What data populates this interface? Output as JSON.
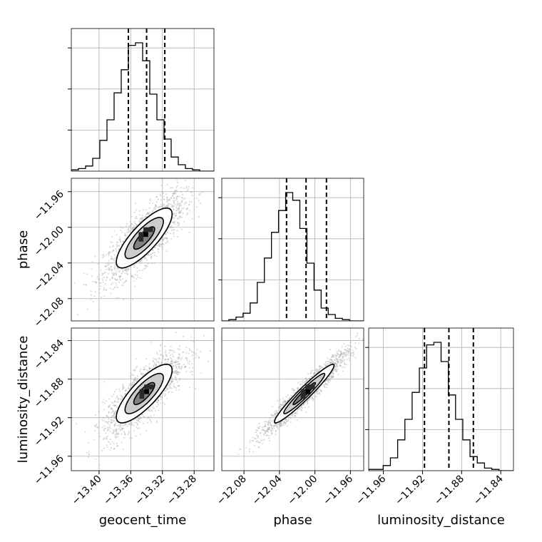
{
  "chart_data": {
    "type": "corner",
    "parameters": [
      "geocent_time",
      "phase",
      "luminosity_distance"
    ],
    "grid": true,
    "colors": {
      "line": "#000000",
      "grid": "#b0b0b0",
      "points": "#9a9a9a",
      "background": "#ffffff"
    },
    "ticks": {
      "geocent_time": [
        "−13.40",
        "−13.36",
        "−13.32",
        "−13.28"
      ],
      "phase": [
        "−12.08",
        "−12.04",
        "−12.00",
        "−11.96"
      ],
      "luminosity_distance": [
        "−11.96",
        "−11.92",
        "−11.88",
        "−11.84"
      ]
    },
    "ranges": {
      "geocent_time": [
        -13.435,
        -13.255
      ],
      "phase": [
        -12.105,
        -11.945
      ],
      "luminosity_distance": [
        -11.975,
        -11.827
      ]
    },
    "quantiles": {
      "geocent_time": [
        -13.363,
        -13.34,
        -13.317
      ],
      "phase": [
        -12.032,
        -12.01,
        -11.987
      ],
      "luminosity_distance": [
        -11.918,
        -11.893,
        -11.868
      ]
    },
    "histograms": {
      "geocent_time": {
        "bin_start": -13.435,
        "bin_width": 0.009,
        "counts": [
          0.01,
          0.02,
          0.04,
          0.1,
          0.24,
          0.4,
          0.61,
          0.79,
          0.98,
          1.0,
          0.86,
          0.6,
          0.4,
          0.25,
          0.11,
          0.05,
          0.02,
          0.01,
          0.0,
          0.0
        ]
      },
      "phase": {
        "bin_start": -12.105,
        "bin_width": 0.008,
        "counts": [
          0.0,
          0.01,
          0.03,
          0.06,
          0.14,
          0.3,
          0.49,
          0.69,
          0.86,
          1.0,
          0.94,
          0.72,
          0.45,
          0.24,
          0.1,
          0.05,
          0.02,
          0.01,
          0.0,
          0.0
        ]
      },
      "luminosity_distance": {
        "bin_start": -11.975,
        "bin_width": 0.0074,
        "counts": [
          0.01,
          0.01,
          0.04,
          0.1,
          0.24,
          0.4,
          0.61,
          0.8,
          0.98,
          1.0,
          0.85,
          0.59,
          0.4,
          0.24,
          0.11,
          0.06,
          0.02,
          0.01,
          0.0,
          0.0
        ]
      }
    },
    "pairs": [
      {
        "x": "geocent_time",
        "y": "phase",
        "center": [
          -13.343,
          -12.012
        ],
        "sd": [
          0.022,
          0.021
        ],
        "corr": 0.8,
        "n_points": 1700,
        "contour_scales": [
          0.6,
          1.1,
          1.6
        ],
        "peak": [
          -13.341,
          -12.008
        ]
      },
      {
        "x": "geocent_time",
        "y": "luminosity_distance",
        "center": [
          -13.343,
          -11.895
        ],
        "sd": [
          0.022,
          0.019
        ],
        "corr": 0.8,
        "n_points": 1700,
        "contour_scales": [
          0.6,
          1.1,
          1.6
        ],
        "peak": [
          -13.34,
          -11.893
        ]
      },
      {
        "x": "phase",
        "y": "luminosity_distance",
        "center": [
          -12.012,
          -11.895
        ],
        "sd": [
          0.021,
          0.019
        ],
        "corr": 0.96,
        "n_points": 1700,
        "contour_scales": [
          0.6,
          1.1,
          1.6
        ],
        "peak": [
          -12.008,
          -11.893
        ]
      }
    ]
  }
}
